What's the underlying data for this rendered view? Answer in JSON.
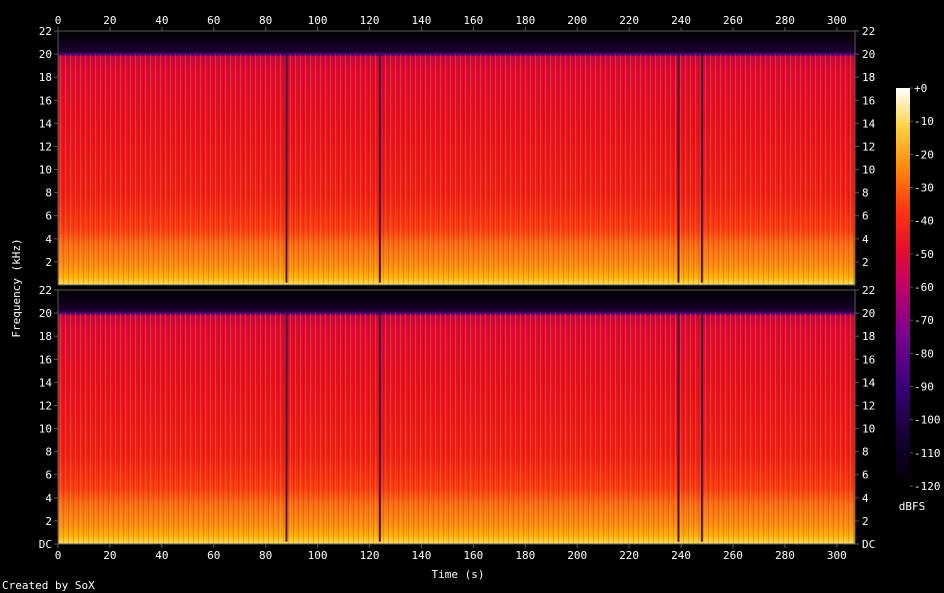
{
  "chart_data": {
    "type": "heatmap",
    "title": "",
    "xlabel": "Time (s)",
    "ylabel": "Frequency (kHz)",
    "xlim": [
      0,
      307
    ],
    "ylim": [
      0,
      22
    ],
    "x_ticks": [
      "0",
      "20",
      "40",
      "60",
      "80",
      "100",
      "120",
      "140",
      "160",
      "180",
      "200",
      "220",
      "240",
      "260",
      "280",
      "300"
    ],
    "y_ticks": [
      "DC",
      "2",
      "4",
      "6",
      "8",
      "10",
      "12",
      "14",
      "16",
      "18",
      "20",
      "22"
    ],
    "channels": 2,
    "content_cutoff_khz": 20,
    "dark_gaps_s": [
      88,
      124,
      239,
      248
    ],
    "colorbar": {
      "label": "dBFS",
      "ticks": [
        "+0",
        "-10",
        "-20",
        "-30",
        "-40",
        "-50",
        "-60",
        "-70",
        "-80",
        "-90",
        "-100",
        "-110",
        "-120"
      ],
      "range": [
        -120,
        0
      ]
    },
    "footer": "Created by SoX",
    "colors": {
      "background": "#000000",
      "axis": "#5a5a5a",
      "text": "#ffffff"
    }
  }
}
